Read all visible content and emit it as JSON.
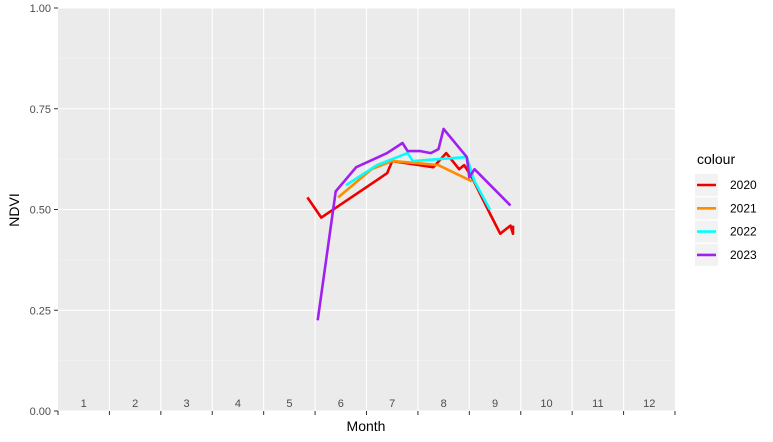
{
  "chart_data": {
    "type": "line",
    "xlabel": "Month",
    "ylabel": "NDVI",
    "x_ticks": [
      "1",
      "2",
      "3",
      "4",
      "5",
      "6",
      "7",
      "8",
      "9",
      "10",
      "11",
      "12"
    ],
    "y_ticks": [
      "0.00",
      "0.25",
      "0.50",
      "0.75",
      "1.00"
    ],
    "y_tick_values": [
      0,
      0.25,
      0.5,
      0.75,
      1.0
    ],
    "xlim": [
      0.5,
      12.5
    ],
    "ylim": [
      0,
      1
    ],
    "grid": true,
    "panel_background": "#ebebeb",
    "legend_title": "colour",
    "legend_position": "right",
    "series": [
      {
        "name": "2020",
        "color": "#ee0000",
        "points": [
          [
            5.35,
            0.53
          ],
          [
            5.62,
            0.48
          ],
          [
            6.9,
            0.59
          ],
          [
            7.0,
            0.62
          ],
          [
            7.8,
            0.605
          ],
          [
            8.05,
            0.64
          ],
          [
            8.3,
            0.6
          ],
          [
            8.4,
            0.61
          ],
          [
            8.55,
            0.58
          ],
          [
            8.9,
            0.49
          ],
          [
            9.1,
            0.44
          ],
          [
            9.3,
            0.46
          ],
          [
            9.35,
            0.44
          ],
          [
            9.35,
            0.46
          ]
        ]
      },
      {
        "name": "2021",
        "color": "#ff8c00",
        "points": [
          [
            5.95,
            0.53
          ],
          [
            6.6,
            0.6
          ],
          [
            7.0,
            0.62
          ],
          [
            7.5,
            0.615
          ],
          [
            7.9,
            0.61
          ],
          [
            8.55,
            0.57
          ]
        ]
      },
      {
        "name": "2022",
        "color": "#00ffff",
        "points": [
          [
            6.1,
            0.56
          ],
          [
            6.7,
            0.61
          ],
          [
            7.3,
            0.64
          ],
          [
            7.4,
            0.62
          ],
          [
            8.45,
            0.63
          ],
          [
            8.6,
            0.57
          ],
          [
            8.9,
            0.5
          ]
        ]
      },
      {
        "name": "2023",
        "color": "#a020f0",
        "points": [
          [
            5.55,
            0.225
          ],
          [
            5.9,
            0.545
          ],
          [
            6.3,
            0.605
          ],
          [
            6.9,
            0.64
          ],
          [
            7.2,
            0.665
          ],
          [
            7.3,
            0.645
          ],
          [
            7.55,
            0.645
          ],
          [
            7.75,
            0.64
          ],
          [
            7.9,
            0.65
          ],
          [
            8.0,
            0.7
          ],
          [
            8.45,
            0.63
          ],
          [
            8.5,
            0.58
          ],
          [
            8.6,
            0.6
          ],
          [
            9.3,
            0.51
          ]
        ]
      }
    ]
  }
}
